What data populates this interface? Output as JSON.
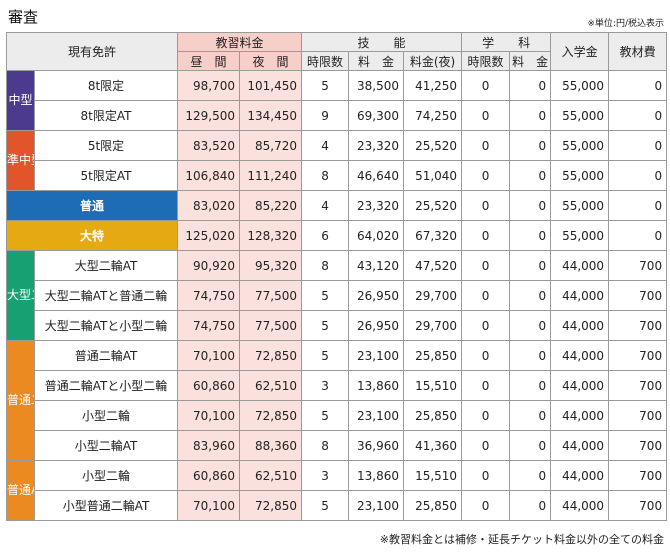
{
  "title": "審査",
  "unit_note": "※単位:円/税込表示",
  "footnote": "※教習料金とは補修・延長チケット料金以外の全ての料金",
  "headers": {
    "license": "現有免許",
    "tuition": "教習料金",
    "day": "昼　間",
    "night": "夜　間",
    "skill": "技　　能",
    "hours": "時限数",
    "fee": "料　金",
    "fee_night": "料金(夜)",
    "academic": "学　　科",
    "admission": "入学金",
    "materials": "教材費"
  },
  "colors": {
    "purple": "#4b3a8e",
    "orange_red": "#e2542a",
    "blue": "#1e6cb5",
    "yellow": "#e5a912",
    "green": "#17a173",
    "orange": "#ec8a22",
    "pink_header": "#f7cfc9",
    "pink_cell": "#fbe1dd"
  },
  "groups": [
    {
      "label": "中型",
      "color": "#4b3a8e",
      "rows": [
        {
          "license": "8t限定",
          "day": "98,700",
          "night": "101,450",
          "hours": "5",
          "fee": "38,500",
          "fee_night": "41,250",
          "ac_hours": "0",
          "ac_fee": "0",
          "admission": "55,000",
          "materials": "0"
        },
        {
          "license": "8t限定AT",
          "day": "129,500",
          "night": "134,450",
          "hours": "9",
          "fee": "69,300",
          "fee_night": "74,250",
          "ac_hours": "0",
          "ac_fee": "0",
          "admission": "55,000",
          "materials": "0"
        }
      ]
    },
    {
      "label": "準中型",
      "color": "#e2542a",
      "rows": [
        {
          "license": "5t限定",
          "day": "83,520",
          "night": "85,720",
          "hours": "4",
          "fee": "23,320",
          "fee_night": "25,520",
          "ac_hours": "0",
          "ac_fee": "0",
          "admission": "55,000",
          "materials": "0"
        },
        {
          "license": "5t限定AT",
          "day": "106,840",
          "night": "111,240",
          "hours": "8",
          "fee": "46,640",
          "fee_night": "51,040",
          "ac_hours": "0",
          "ac_fee": "0",
          "admission": "55,000",
          "materials": "0"
        }
      ]
    },
    {
      "label": "",
      "color": "#1e6cb5",
      "single": "blue",
      "rows": [
        {
          "license": "普通",
          "day": "83,020",
          "night": "85,220",
          "hours": "4",
          "fee": "23,320",
          "fee_night": "25,520",
          "ac_hours": "0",
          "ac_fee": "0",
          "admission": "55,000",
          "materials": "0"
        }
      ]
    },
    {
      "label": "",
      "color": "#e5a912",
      "single": "yellow",
      "rows": [
        {
          "license": "大特",
          "day": "125,020",
          "night": "128,320",
          "hours": "6",
          "fee": "64,020",
          "fee_night": "67,320",
          "ac_hours": "0",
          "ac_fee": "0",
          "admission": "55,000",
          "materials": "0"
        }
      ]
    },
    {
      "label": "大型二輪",
      "color": "#17a173",
      "rows": [
        {
          "license": "大型二輪AT",
          "day": "90,920",
          "night": "95,320",
          "hours": "8",
          "fee": "43,120",
          "fee_night": "47,520",
          "ac_hours": "0",
          "ac_fee": "0",
          "admission": "44,000",
          "materials": "700"
        },
        {
          "license": "大型二輪ATと普通二輪",
          "day": "74,750",
          "night": "77,500",
          "hours": "5",
          "fee": "26,950",
          "fee_night": "29,700",
          "ac_hours": "0",
          "ac_fee": "0",
          "admission": "44,000",
          "materials": "700"
        },
        {
          "license": "大型二輪ATと小型二輪",
          "day": "74,750",
          "night": "77,500",
          "hours": "5",
          "fee": "26,950",
          "fee_night": "29,700",
          "ac_hours": "0",
          "ac_fee": "0",
          "admission": "44,000",
          "materials": "700"
        }
      ]
    },
    {
      "label": "普通二輪",
      "color": "#ec8a22",
      "rows": [
        {
          "license": "普通二輪AT",
          "day": "70,100",
          "night": "72,850",
          "hours": "5",
          "fee": "23,100",
          "fee_night": "25,850",
          "ac_hours": "0",
          "ac_fee": "0",
          "admission": "44,000",
          "materials": "700"
        },
        {
          "license": "普通二輪ATと小型二輪",
          "day": "60,860",
          "night": "62,510",
          "hours": "3",
          "fee": "13,860",
          "fee_night": "15,510",
          "ac_hours": "0",
          "ac_fee": "0",
          "admission": "44,000",
          "materials": "700"
        },
        {
          "license": "小型二輪",
          "day": "70,100",
          "night": "72,850",
          "hours": "5",
          "fee": "23,100",
          "fee_night": "25,850",
          "ac_hours": "0",
          "ac_fee": "0",
          "admission": "44,000",
          "materials": "700"
        },
        {
          "license": "小型二輪AT",
          "day": "83,960",
          "night": "88,360",
          "hours": "8",
          "fee": "36,960",
          "fee_night": "41,360",
          "ac_hours": "0",
          "ac_fee": "0",
          "admission": "44,000",
          "materials": "700"
        }
      ]
    },
    {
      "label": "普通AT二輪",
      "color": "#ec8a22",
      "rows": [
        {
          "license": "小型二輪",
          "day": "60,860",
          "night": "62,510",
          "hours": "3",
          "fee": "13,860",
          "fee_night": "15,510",
          "ac_hours": "0",
          "ac_fee": "0",
          "admission": "44,000",
          "materials": "700"
        },
        {
          "license": "小型普通二輪AT",
          "day": "70,100",
          "night": "72,850",
          "hours": "5",
          "fee": "23,100",
          "fee_night": "25,850",
          "ac_hours": "0",
          "ac_fee": "0",
          "admission": "44,000",
          "materials": "700"
        }
      ]
    }
  ]
}
